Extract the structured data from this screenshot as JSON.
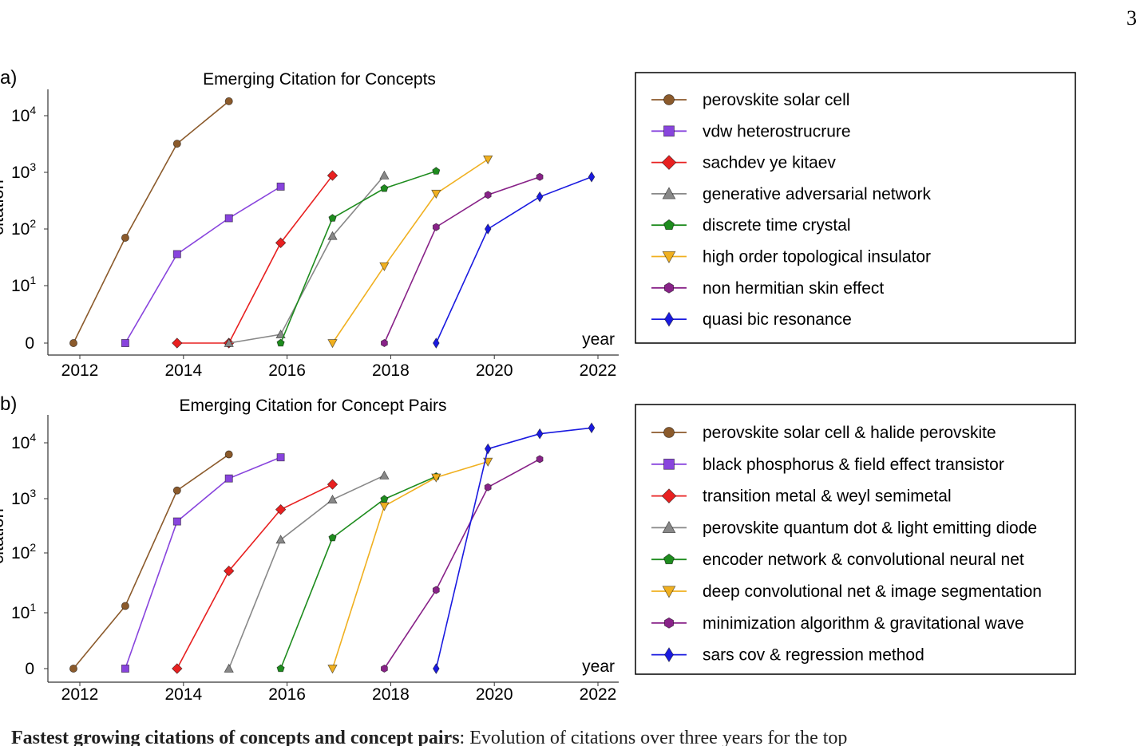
{
  "page": {
    "number": "3"
  },
  "caption": {
    "bold": "Fastest growing citations of concepts and concept pairs",
    "text": ": Evolution of citations over three years for the top"
  },
  "chart_data": [
    {
      "type": "line",
      "panel_label": "a)",
      "title": "Emerging Citation for Concepts",
      "xlabel": "year",
      "ylabel": "citation",
      "yscale": "symlog",
      "xlim": [
        2011.9,
        2022.5
      ],
      "x_ticks": [
        "2012",
        "2014",
        "2016",
        "2018",
        "2020",
        "2022"
      ],
      "y_ticks": [
        {
          "value": 0,
          "base": "0",
          "exp": ""
        },
        {
          "value": 10,
          "base": "10",
          "exp": "1"
        },
        {
          "value": 100,
          "base": "10",
          "exp": "2"
        },
        {
          "value": 1000,
          "base": "10",
          "exp": "3"
        },
        {
          "value": 10000,
          "base": "10",
          "exp": "4"
        }
      ],
      "legend": "right",
      "series": [
        {
          "name": "perovskite solar cell",
          "color": "#8B5A2B",
          "marker": "circle",
          "x": [
            2012,
            2013,
            2014,
            2015
          ],
          "y": [
            0,
            70,
            3200,
            18000
          ]
        },
        {
          "name": "vdw heterostrucrure",
          "color": "#8844DD",
          "marker": "square",
          "x": [
            2013,
            2014,
            2015,
            2016
          ],
          "y": [
            0,
            36,
            155,
            560
          ]
        },
        {
          "name": "sachdev ye kitaev",
          "color": "#E82020",
          "marker": "diamond",
          "x": [
            2014,
            2015,
            2016,
            2017
          ],
          "y": [
            0,
            0,
            57,
            880
          ]
        },
        {
          "name": "generative adversarial network",
          "color": "#888888",
          "marker": "triangle-up",
          "x": [
            2015,
            2016,
            2017,
            2018
          ],
          "y": [
            0,
            1.5,
            75,
            880
          ]
        },
        {
          "name": "discrete time crystal",
          "color": "#1E8C1E",
          "marker": "pentagon",
          "x": [
            2016,
            2017,
            2018,
            2019
          ],
          "y": [
            0,
            155,
            520,
            1050
          ]
        },
        {
          "name": "high order topological insulator",
          "color": "#F0B020",
          "marker": "triangle-down",
          "x": [
            2017,
            2018,
            2019,
            2020
          ],
          "y": [
            0,
            22,
            420,
            1700
          ]
        },
        {
          "name": "non hermitian skin effect",
          "color": "#882288",
          "marker": "hexagon",
          "x": [
            2018,
            2019,
            2020,
            2021
          ],
          "y": [
            0,
            108,
            400,
            830
          ]
        },
        {
          "name": "quasi bic resonance",
          "color": "#1A1AE0",
          "marker": "thin-diamond",
          "x": [
            2019,
            2020,
            2021,
            2022
          ],
          "y": [
            0,
            100,
            370,
            830
          ]
        }
      ]
    },
    {
      "type": "line",
      "panel_label": "b)",
      "title": "Emerging Citation for Concept Pairs",
      "xlabel": "year",
      "ylabel": "citation",
      "yscale": "symlog",
      "xlim": [
        2011.9,
        2022.5
      ],
      "x_ticks": [
        "2012",
        "2014",
        "2016",
        "2018",
        "2020",
        "2022"
      ],
      "y_ticks": [
        {
          "value": 0,
          "base": "0",
          "exp": ""
        },
        {
          "value": 10,
          "base": "10",
          "exp": "1"
        },
        {
          "value": 100,
          "base": "10",
          "exp": "2"
        },
        {
          "value": 1000,
          "base": "10",
          "exp": "3"
        },
        {
          "value": 10000,
          "base": "10",
          "exp": "4"
        }
      ],
      "legend": "right",
      "series": [
        {
          "name": "perovskite solar cell & halide perovskite",
          "color": "#8B5A2B",
          "marker": "circle",
          "x": [
            2012,
            2013,
            2014,
            2015
          ],
          "y": [
            0,
            13,
            1400,
            6200
          ]
        },
        {
          "name": "black phosphorus & field effect transistor",
          "color": "#8844DD",
          "marker": "square",
          "x": [
            2013,
            2014,
            2015,
            2016
          ],
          "y": [
            0,
            380,
            2300,
            5500
          ]
        },
        {
          "name": "transition metal & weyl semimetal",
          "color": "#E82020",
          "marker": "diamond",
          "x": [
            2014,
            2015,
            2016,
            2017
          ],
          "y": [
            0,
            50,
            630,
            1800
          ]
        },
        {
          "name": "perovskite quantum dot & light emitting diode",
          "color": "#888888",
          "marker": "triangle-up",
          "x": [
            2015,
            2016,
            2017,
            2018
          ],
          "y": [
            0,
            175,
            960,
            2600
          ]
        },
        {
          "name": "encoder network & convolutional neural net",
          "color": "#1E8C1E",
          "marker": "pentagon",
          "x": [
            2016,
            2017,
            2018,
            2019
          ],
          "y": [
            0,
            190,
            980,
            2500
          ]
        },
        {
          "name": "deep convolutional net & image segmentation",
          "color": "#F0B020",
          "marker": "triangle-down",
          "x": [
            2017,
            2018,
            2019,
            2020
          ],
          "y": [
            0,
            730,
            2400,
            4600
          ]
        },
        {
          "name": "minimization algorithm & gravitational wave",
          "color": "#882288",
          "marker": "hexagon",
          "x": [
            2018,
            2019,
            2020,
            2021
          ],
          "y": [
            0,
            24,
            1600,
            5100
          ]
        },
        {
          "name": "sars cov & regression method",
          "color": "#1A1AE0",
          "marker": "thin-diamond",
          "x": [
            2019,
            2020,
            2021,
            2022
          ],
          "y": [
            0,
            7800,
            14500,
            18500
          ]
        }
      ]
    }
  ]
}
